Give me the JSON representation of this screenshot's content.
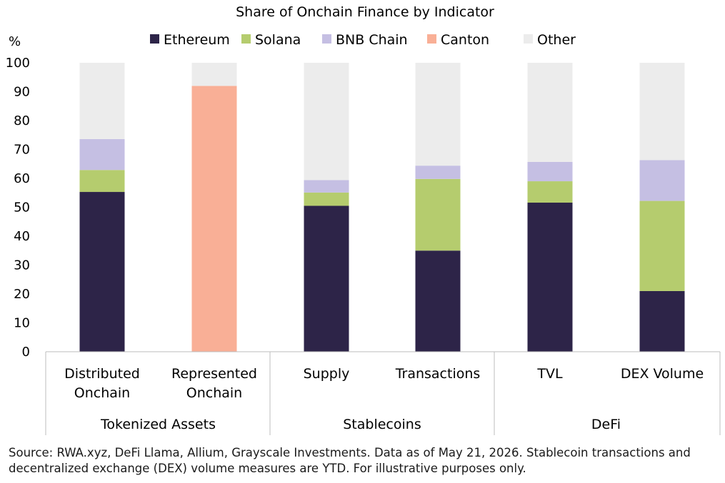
{
  "chart_data": {
    "type": "bar",
    "stacked": true,
    "title": "Share of Onchain Finance by Indicator",
    "ylabel": "%",
    "ylim": [
      0,
      100
    ],
    "yticks": [
      0,
      10,
      20,
      30,
      40,
      50,
      60,
      70,
      80,
      90,
      100
    ],
    "categories": [
      [
        "Distributed",
        "Onchain"
      ],
      [
        "Represented",
        "Onchain"
      ],
      [
        "Supply"
      ],
      [
        "Transactions"
      ],
      [
        "TVL"
      ],
      [
        "DEX Volume"
      ]
    ],
    "groups": [
      {
        "label": "Tokenized Assets",
        "count": 2
      },
      {
        "label": "Stablecoins",
        "count": 2
      },
      {
        "label": "DeFi",
        "count": 2
      }
    ],
    "series": [
      {
        "name": "Ethereum",
        "color": "#2d2448",
        "values": [
          55.3,
          0,
          50.5,
          35,
          51.6,
          21
        ]
      },
      {
        "name": "Solana",
        "color": "#b5cc6e",
        "values": [
          7.6,
          0,
          4.6,
          24.8,
          7.4,
          31.2
        ]
      },
      {
        "name": "BNB Chain",
        "color": "#c5bfe3",
        "values": [
          10.7,
          0,
          4.3,
          4.6,
          6.7,
          14.1
        ]
      },
      {
        "name": "Canton",
        "color": "#f9af96",
        "values": [
          0,
          92,
          0,
          0,
          0,
          0
        ]
      },
      {
        "name": "Other",
        "color": "#ececec",
        "values": [
          26.4,
          8,
          40.6,
          35.6,
          34.3,
          33.7
        ]
      }
    ],
    "legend_position": "top",
    "grid": false
  },
  "source_note": "Source: RWA.xyz, DeFi Llama, Allium, Grayscale Investments. Data as of May 21, 2026. Stablecoin transactions and decentralized exchange (DEX) volume measures are YTD. For illustrative purposes only."
}
